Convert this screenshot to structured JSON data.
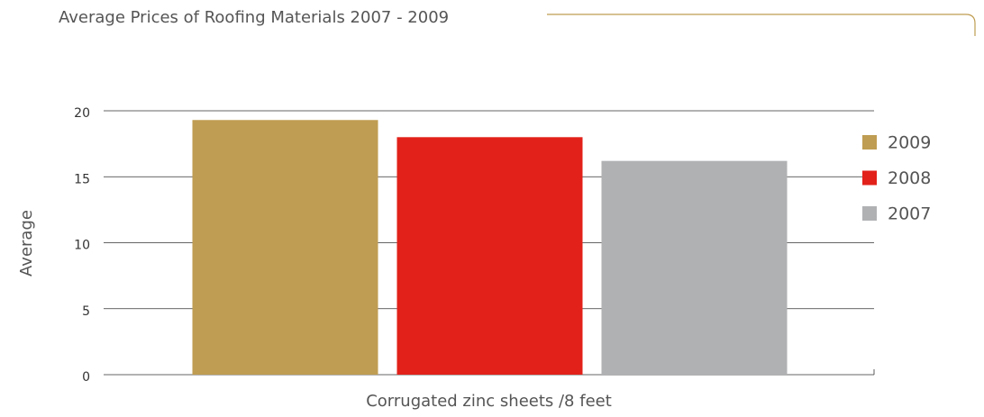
{
  "chart_data": {
    "type": "bar",
    "title": "Average Prices of Roofing Materials 2007 - 2009",
    "ylabel": "Average",
    "categories": [
      "Corrugated zinc sheets /8 feet"
    ],
    "series": [
      {
        "name": "2009",
        "color": "#bf9d52",
        "values": [
          19.3
        ]
      },
      {
        "name": "2008",
        "color": "#e2211a",
        "values": [
          18.0
        ]
      },
      {
        "name": "2007",
        "color": "#b0b1b3",
        "values": [
          16.2
        ]
      }
    ],
    "ylim": [
      0,
      20
    ],
    "yticks": [
      0,
      5,
      10,
      15,
      20
    ],
    "grid": true,
    "legend": "right"
  }
}
